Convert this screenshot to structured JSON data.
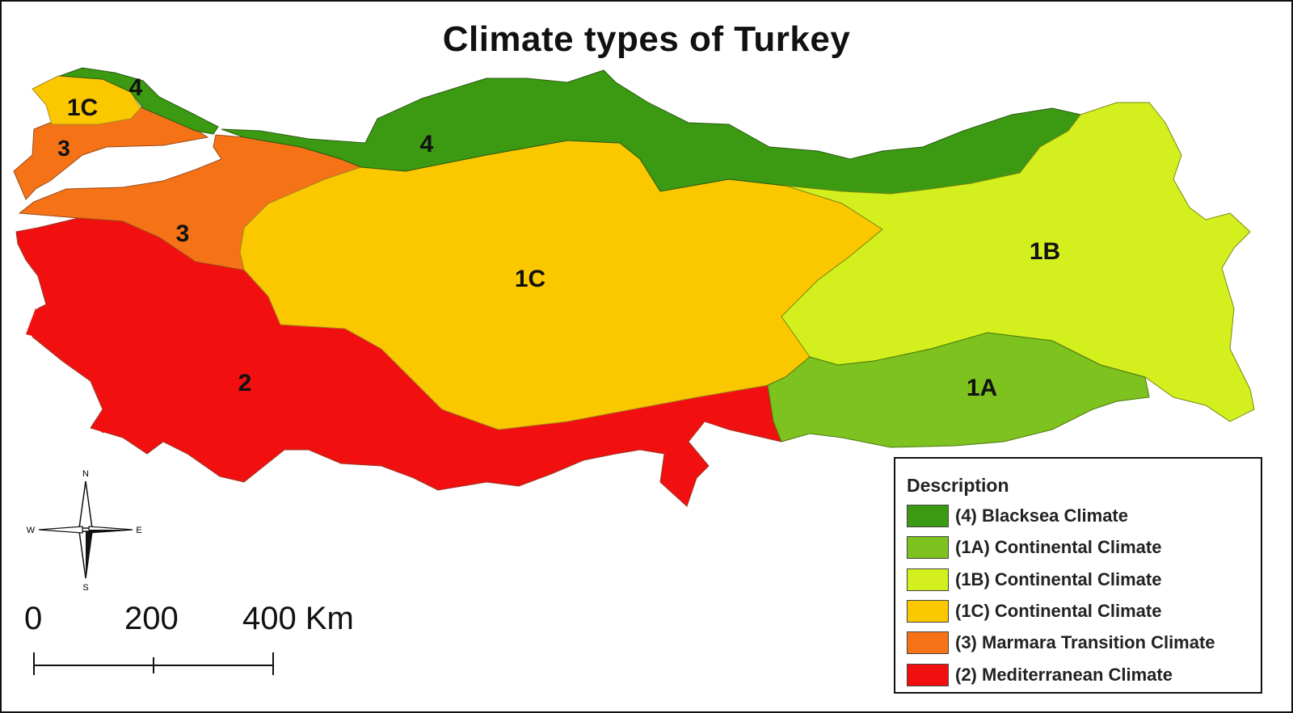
{
  "title": "Climate types of Turkey",
  "colors": {
    "blacksea": "#3c9a12",
    "cont_1a": "#7dc21e",
    "cont_1b": "#d4ef1e",
    "cont_1c": "#fbc800",
    "marmara": "#f57316",
    "mediterranean": "#f20f0f",
    "background": "#ffffff"
  },
  "regions": [
    {
      "code": "4",
      "name": "Blacksea Climate",
      "color_key": "blacksea"
    },
    {
      "code": "1A",
      "name": "Continental Climate",
      "color_key": "cont_1a"
    },
    {
      "code": "1B",
      "name": "Continental Climate",
      "color_key": "cont_1b"
    },
    {
      "code": "1C",
      "name": "Continental Climate",
      "color_key": "cont_1c"
    },
    {
      "code": "3",
      "name": "Marmara Transition Climate",
      "color_key": "marmara"
    },
    {
      "code": "2",
      "name": "Mediterranean Climate",
      "color_key": "mediterranean"
    }
  ],
  "map_labels": {
    "blacksea_west": "4",
    "blacksea_main": "4",
    "cont_1c_thrace": "1C",
    "cont_1c_main": "1C",
    "cont_1b": "1B",
    "cont_1a": "1A",
    "marmara_thrace": "3",
    "marmara_anatolia": "3",
    "mediterranean": "2"
  },
  "legend": {
    "title": "Description",
    "items": [
      {
        "label": "(4) Blacksea Climate",
        "color_key": "blacksea"
      },
      {
        "label": "(1A) Continental Climate",
        "color_key": "cont_1a"
      },
      {
        "label": "(1B) Continental Climate",
        "color_key": "cont_1b"
      },
      {
        "label": "(1C) Continental Climate",
        "color_key": "cont_1c"
      },
      {
        "label": "(3) Marmara Transition Climate",
        "color_key": "marmara"
      },
      {
        "label": "(2) Mediterranean Climate",
        "color_key": "mediterranean"
      }
    ]
  },
  "scale": {
    "ticks": [
      "0",
      "200",
      "400 Km"
    ]
  },
  "compass": {
    "north": "N",
    "south": "S",
    "east": "E",
    "west": "W"
  }
}
